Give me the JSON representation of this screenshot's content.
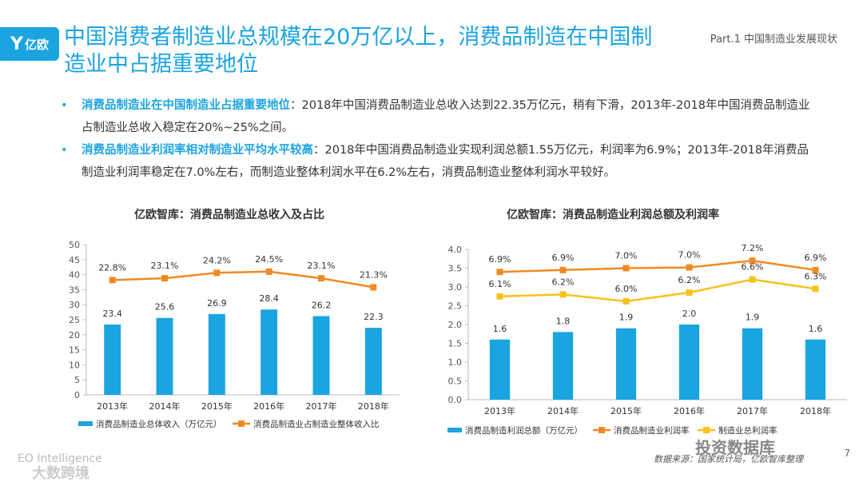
{
  "logo": {
    "text": "亿欧"
  },
  "title": "中国消费者制造业总规模在20万亿以上，消费品制造在中国制造业中占据重要地位",
  "part_label": "Part.1 中国制造业发展现状",
  "bullets": [
    {
      "highlight": "消费品制造业在中国制造业占据重要地位",
      "text": "：2018年中国消费品制造业总收入达到22.35万亿元，稍有下滑，2013年-2018年中国消费品制造业占制造业总收入稳定在20%~25%之间。"
    },
    {
      "highlight": "消费品制造业利润率相对制造业平均水平较高",
      "text": "：2018年中国消费品制造业实现利润总额1.55万亿元，利润率为6.9%；2013年-2018年消费品制造业利润率稳定在7.0%左右，而制造业整体利润水平在6.2%左右，消费品制造业整体利润水平较好。"
    }
  ],
  "chart_data": [
    {
      "type": "bar",
      "title": "亿欧智库：消费品制造业总收入及占比",
      "categories": [
        "2013年",
        "2014年",
        "2015年",
        "2016年",
        "2017年",
        "2018年"
      ],
      "ylim": [
        0,
        50
      ],
      "yticks": [
        0,
        5,
        10,
        15,
        20,
        25,
        30,
        35,
        40,
        45,
        50
      ],
      "bar_labels": [
        "23.4",
        "25.6",
        "26.9",
        "28.4",
        "26.2",
        "22.3"
      ],
      "line_labels": [
        "22.8%",
        "23.1%",
        "24.2%",
        "24.5%",
        "23.1%",
        "21.3%"
      ],
      "series": [
        {
          "name": "消费品制造业总体收入（万亿元）",
          "kind": "bar",
          "color": "#1aa4e0",
          "values": [
            23.4,
            25.6,
            26.9,
            28.4,
            26.2,
            22.3
          ]
        },
        {
          "name": "消费品制造业占制造业整体收入比",
          "kind": "line",
          "color": "#f08a24",
          "values": [
            22.8,
            23.1,
            24.2,
            24.5,
            23.1,
            21.3
          ],
          "plot_values": [
            38.2,
            38.8,
            40.6,
            41.0,
            38.8,
            35.8
          ]
        }
      ]
    },
    {
      "type": "bar",
      "title": "亿欧智库：消费品制造业利润总额及利润率",
      "categories": [
        "2013年",
        "2014年",
        "2015年",
        "2016年",
        "2017年",
        "2018年"
      ],
      "ylim": [
        0,
        4
      ],
      "yticks": [
        "0.0",
        "0.5",
        "1.0",
        "1.5",
        "2.0",
        "2.5",
        "3.0",
        "3.5",
        "4.0"
      ],
      "bar_labels": [
        "1.6",
        "1.8",
        "1.9",
        "2.0",
        "1.9",
        "1.6"
      ],
      "line1_labels": [
        "6.9%",
        "6.9%",
        "7.0%",
        "7.0%",
        "7.2%",
        "6.9%"
      ],
      "line2_labels": [
        "6.1%",
        "6.2%",
        "6.0%",
        "6.2%",
        "6.6%",
        "6.3%"
      ],
      "series": [
        {
          "name": "消费品制造利润总额（万亿元）",
          "kind": "bar",
          "color": "#1aa4e0",
          "values": [
            1.6,
            1.8,
            1.9,
            2.0,
            1.9,
            1.6
          ]
        },
        {
          "name": "消费品制造业利润率",
          "kind": "line",
          "color": "#f08a24",
          "values": [
            6.9,
            6.9,
            7.0,
            7.0,
            7.2,
            6.9
          ],
          "plot_values": [
            3.4,
            3.45,
            3.5,
            3.52,
            3.7,
            3.45
          ]
        },
        {
          "name": "制造业总利润率",
          "kind": "line",
          "color": "#f6c21a",
          "values": [
            6.1,
            6.2,
            6.0,
            6.2,
            6.6,
            6.3
          ],
          "plot_values": [
            2.75,
            2.8,
            2.62,
            2.85,
            3.2,
            2.95
          ]
        }
      ]
    }
  ],
  "footer": {
    "source": "数据来源：国家统计局，亿欧智库整理",
    "page": "7",
    "watermark_eo": "EO Intelligence",
    "watermark_big": "大数跨境",
    "watermark_wechat": "投资数据库"
  },
  "colors": {
    "accent": "#1aa4e0",
    "orange": "#f08a24",
    "yellow": "#f6c21a"
  }
}
